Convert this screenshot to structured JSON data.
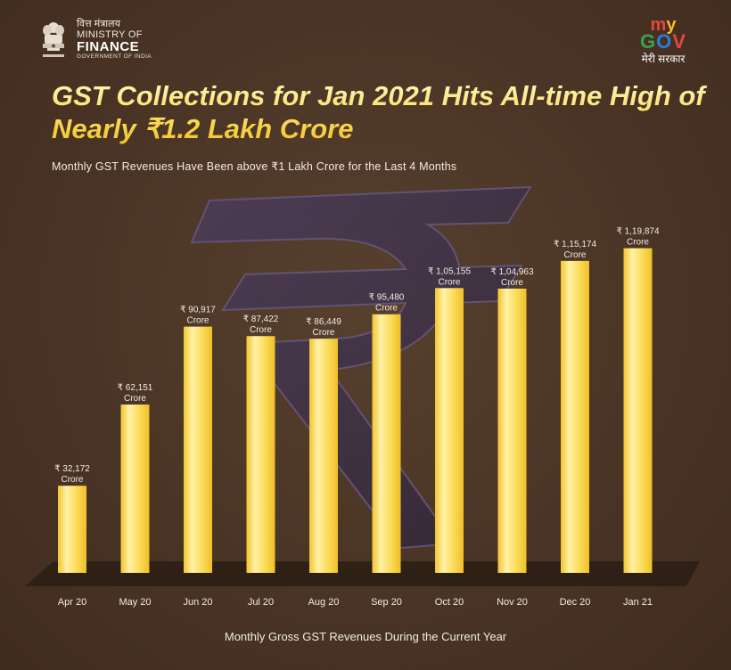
{
  "header": {
    "ministry_hindi": "वित्त मंत्रालय",
    "ministry_line1": "MINISTRY OF",
    "ministry_line2": "FINANCE",
    "ministry_line3": "GOVERNMENT OF INDIA",
    "mygov_tag": "मेरी सरकार"
  },
  "title": "GST Collections for Jan 2021 Hits All-time High of Nearly ₹1.2 Lakh Crore",
  "subtitle": "Monthly GST Revenues Have Been above ₹1 Lakh Crore for the Last 4 Months",
  "footer": "Monthly Gross GST Revenues During the Current Year",
  "colors": {
    "background": "#4a3424",
    "bar_light": "#fff0a0",
    "bar": "#f7d13e",
    "title": "#f8d64a"
  },
  "chart_data": {
    "type": "bar",
    "categories": [
      "Apr 20",
      "May 20",
      "Jun 20",
      "Jul 20",
      "Aug 20",
      "Sep 20",
      "Oct 20",
      "Nov 20",
      "Dec 20",
      "Jan 21"
    ],
    "values": [
      32172,
      62151,
      90917,
      87422,
      86449,
      95480,
      105155,
      104963,
      115174,
      119874
    ],
    "value_labels": [
      "₹ 32,172",
      "₹ 62,151",
      "₹ 90,917",
      "₹ 87,422",
      "₹ 86,449",
      "₹ 95,480",
      "₹ 1,05,155",
      "₹ 1,04,963",
      "₹ 1,15,174",
      "₹ 1,19,874"
    ],
    "unit_label": "Crore",
    "xlabel": "Monthly Gross GST Revenues During the Current Year",
    "ylabel": "",
    "ylim": [
      0,
      125000
    ],
    "grid": false,
    "legend": "none"
  }
}
